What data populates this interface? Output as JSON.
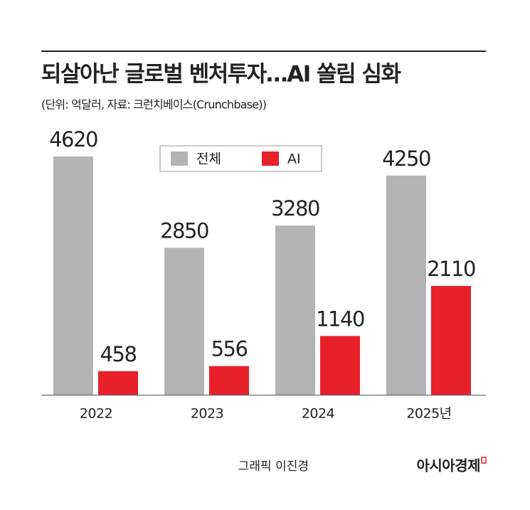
{
  "chart_data": {
    "type": "bar",
    "title": "되살아난 글로벌 벤처투자…AI 쏠림 심화",
    "subtitle": "(단위: 억달러, 자료: 크런치베이스(Crunchbase))",
    "categories": [
      "2022",
      "2023",
      "2024",
      "2025년"
    ],
    "series": [
      {
        "name": "전체",
        "color": "#b3b3b5",
        "values": [
          4620,
          2850,
          3280,
          4250
        ]
      },
      {
        "name": "AI",
        "color": "#e8202a",
        "values": [
          458,
          556,
          1140,
          2110
        ]
      }
    ],
    "credit": "그래픽 이진경",
    "publisher": "아시아경제"
  }
}
